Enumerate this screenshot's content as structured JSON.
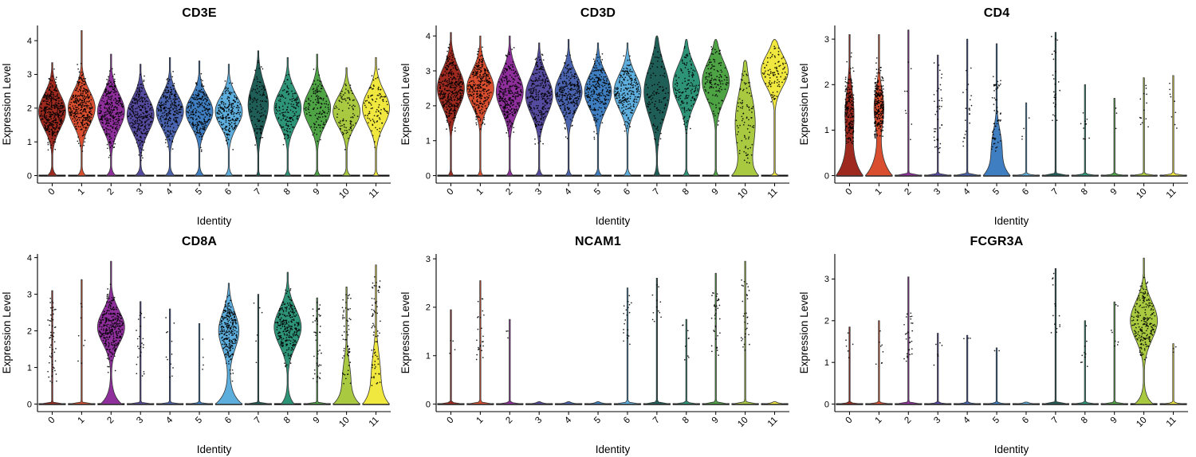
{
  "style": {
    "background": "#FFFFFF",
    "point_color": "#000000",
    "violin_stroke": "#333333",
    "axis_color": "#000000"
  },
  "cluster_colors": [
    "#9E2A1F",
    "#D94E2F",
    "#8E2F9C",
    "#544A9E",
    "#4A63AE",
    "#3F7EC0",
    "#5EAEDD",
    "#1F5E57",
    "#2E9478",
    "#4EA345",
    "#A9CA40",
    "#F0E73F"
  ],
  "chart_data": [
    {
      "type": "violin",
      "title": "CD3E",
      "xlabel": "Identity",
      "ylabel": "Expression Level",
      "categories": [
        "0",
        "1",
        "2",
        "3",
        "4",
        "5",
        "6",
        "7",
        "8",
        "9",
        "10",
        "11"
      ],
      "ylim": [
        0,
        4.45
      ],
      "yticks": [
        0,
        1,
        2,
        3,
        4
      ],
      "violins": [
        {
          "m": 1.9,
          "s": 0.5,
          "a": 1,
          "z": 0.35,
          "zd": 0.12,
          "top": 3.35,
          "n": 380,
          "plo": 0.6,
          "phi": 3.2
        },
        {
          "m": 2.0,
          "s": 0.5,
          "a": 1,
          "z": 0.3,
          "zd": 0.12,
          "top": 4.3,
          "n": 320,
          "plo": 0.6,
          "phi": 3.4
        },
        {
          "m": 1.9,
          "s": 0.52,
          "a": 1,
          "z": 0.35,
          "zd": 0.12,
          "top": 3.6,
          "n": 300,
          "plo": 0.5,
          "phi": 3.3
        },
        {
          "m": 1.8,
          "s": 0.5,
          "a": 1,
          "z": 0.4,
          "zd": 0.12,
          "top": 3.3,
          "n": 280,
          "plo": 0.4,
          "phi": 3.1
        },
        {
          "m": 1.9,
          "s": 0.48,
          "a": 1,
          "z": 0.35,
          "zd": 0.12,
          "top": 3.5,
          "n": 260,
          "plo": 0.6,
          "phi": 3.2
        },
        {
          "m": 1.9,
          "s": 0.45,
          "a": 1,
          "z": 0.35,
          "zd": 0.12,
          "top": 3.4,
          "n": 240,
          "plo": 0.6,
          "phi": 3.1
        },
        {
          "m": 1.9,
          "s": 0.45,
          "a": 1,
          "z": 0.3,
          "zd": 0.12,
          "top": 3.3,
          "n": 220,
          "plo": 0.6,
          "phi": 3.1
        },
        {
          "m": 2.1,
          "s": 0.6,
          "a": 1,
          "z": 0.2,
          "zd": 0.1,
          "top": 3.7,
          "n": 110,
          "plo": 0.8,
          "phi": 3.5,
          "w": 0.75
        },
        {
          "m": 2.0,
          "s": 0.5,
          "a": 1,
          "z": 0.25,
          "zd": 0.1,
          "top": 3.5,
          "n": 150,
          "plo": 0.7,
          "phi": 3.3
        },
        {
          "m": 2.0,
          "s": 0.5,
          "a": 1,
          "z": 0.25,
          "zd": 0.1,
          "top": 3.6,
          "n": 130,
          "plo": 0.7,
          "phi": 3.3
        },
        {
          "m": 1.9,
          "s": 0.45,
          "a": 1,
          "z": 0.3,
          "zd": 0.1,
          "top": 3.2,
          "n": 90,
          "plo": 0.7,
          "phi": 3.0
        },
        {
          "m": 2.0,
          "s": 0.5,
          "a": 1,
          "z": 0.2,
          "zd": 0.1,
          "top": 3.5,
          "n": 100,
          "plo": 0.8,
          "phi": 3.3
        }
      ]
    },
    {
      "type": "violin",
      "title": "CD3D",
      "xlabel": "Identity",
      "ylabel": "Expression Level",
      "categories": [
        "0",
        "1",
        "2",
        "3",
        "4",
        "5",
        "6",
        "7",
        "8",
        "9",
        "10",
        "11"
      ],
      "ylim": [
        0,
        4.3
      ],
      "yticks": [
        0,
        1,
        2,
        3,
        4
      ],
      "violins": [
        {
          "m": 2.5,
          "s": 0.55,
          "a": 1,
          "z": 0.2,
          "zd": 0.1,
          "top": 4.1,
          "n": 380,
          "plo": 1.2,
          "phi": 3.8
        },
        {
          "m": 2.5,
          "s": 0.5,
          "a": 1,
          "z": 0.2,
          "zd": 0.1,
          "top": 4.0,
          "n": 320,
          "plo": 1.2,
          "phi": 3.7
        },
        {
          "m": 2.4,
          "s": 0.55,
          "a": 1,
          "z": 0.25,
          "zd": 0.1,
          "top": 4.0,
          "n": 300,
          "plo": 1.0,
          "phi": 3.7
        },
        {
          "m": 2.3,
          "s": 0.55,
          "a": 1,
          "z": 0.3,
          "zd": 0.1,
          "top": 3.8,
          "n": 280,
          "plo": 0.9,
          "phi": 3.5
        },
        {
          "m": 2.4,
          "s": 0.5,
          "a": 1,
          "z": 0.25,
          "zd": 0.1,
          "top": 3.9,
          "n": 260,
          "plo": 1.0,
          "phi": 3.6
        },
        {
          "m": 2.4,
          "s": 0.5,
          "a": 1,
          "z": 0.3,
          "zd": 0.1,
          "top": 3.8,
          "n": 240,
          "plo": 1.0,
          "phi": 3.5
        },
        {
          "m": 2.4,
          "s": 0.5,
          "a": 1,
          "z": 0.3,
          "zd": 0.1,
          "top": 3.8,
          "n": 220,
          "plo": 1.0,
          "phi": 3.5
        },
        {
          "m": 2.4,
          "s": 0.72,
          "a": 1,
          "z": 0.25,
          "zd": 0.15,
          "top": 4.0,
          "n": 110,
          "plo": 0.8,
          "phi": 3.8,
          "w": 0.95
        },
        {
          "m": 2.6,
          "s": 0.55,
          "a": 1,
          "z": 0.25,
          "zd": 0.1,
          "top": 3.9,
          "n": 150,
          "plo": 1.0,
          "phi": 3.7
        },
        {
          "m": 2.7,
          "s": 0.55,
          "a": 1,
          "z": 0.2,
          "zd": 0.1,
          "top": 3.9,
          "n": 130,
          "plo": 1.2,
          "phi": 3.7
        },
        {
          "m": 1.5,
          "s": 0.9,
          "a": 0.9,
          "z": 1,
          "zd": 0.3,
          "top": 3.3,
          "n": 90,
          "plo": 0.3,
          "phi": 3.0
        },
        {
          "m": 3.0,
          "s": 0.45,
          "a": 1,
          "z": 0.3,
          "zd": 0.05,
          "top": 3.9,
          "n": 100,
          "plo": 2.0,
          "phi": 3.8
        }
      ]
    },
    {
      "type": "violin",
      "title": "CD4",
      "xlabel": "Identity",
      "ylabel": "Expression Level",
      "categories": [
        "0",
        "1",
        "2",
        "3",
        "4",
        "5",
        "6",
        "7",
        "8",
        "9",
        "10",
        "11"
      ],
      "ylim": [
        0,
        3.3
      ],
      "yticks": [
        0,
        1,
        2,
        3
      ],
      "violins": [
        {
          "m": 1.4,
          "s": 0.5,
          "a": 0.3,
          "z": 1,
          "zd": 0.4,
          "top": 3.1,
          "n": 190,
          "plo": 0.7,
          "phi": 2.7,
          "pd": "g"
        },
        {
          "m": 1.5,
          "s": 0.4,
          "a": 0.35,
          "z": 1,
          "zd": 0.35,
          "top": 3.1,
          "n": 250,
          "plo": 0.8,
          "phi": 2.6,
          "pd": "g"
        },
        {
          "top": 3.2,
          "n": 8,
          "plo": 0.6,
          "phi": 2.6
        },
        {
          "top": 2.65,
          "n": 40,
          "plo": 0.5,
          "phi": 2.5
        },
        {
          "top": 3.0,
          "n": 22,
          "plo": 0.6,
          "phi": 2.4
        },
        {
          "m": 0.7,
          "s": 0.35,
          "a": 0.3,
          "z": 1,
          "zd": 0.3,
          "top": 2.9,
          "n": 60,
          "plo": 0.5,
          "phi": 2.2,
          "pd": "u"
        },
        {
          "top": 1.6,
          "n": 4,
          "plo": 0.8,
          "phi": 1.5
        },
        {
          "top": 3.15,
          "n": 26,
          "plo": 1.2,
          "phi": 3.1
        },
        {
          "top": 2.0,
          "n": 10,
          "plo": 0.8,
          "phi": 1.9
        },
        {
          "top": 1.7,
          "n": 3,
          "plo": 1.0,
          "phi": 1.7
        },
        {
          "top": 2.15,
          "n": 14,
          "plo": 1.0,
          "phi": 2.1
        },
        {
          "top": 2.2,
          "n": 9,
          "plo": 1.0,
          "phi": 2.1
        }
      ]
    },
    {
      "type": "violin",
      "title": "CD8A",
      "xlabel": "Identity",
      "ylabel": "Expression Level",
      "categories": [
        "0",
        "1",
        "2",
        "3",
        "4",
        "5",
        "6",
        "7",
        "8",
        "9",
        "10",
        "11"
      ],
      "ylim": [
        0,
        4.1
      ],
      "yticks": [
        0,
        1,
        2,
        3,
        4
      ],
      "violins": [
        {
          "top": 3.1,
          "n": 55,
          "plo": 0.5,
          "phi": 2.9
        },
        {
          "top": 3.4,
          "n": 8,
          "plo": 0.8,
          "phi": 3.0
        },
        {
          "m": 2.1,
          "s": 0.45,
          "a": 1,
          "z": 0.8,
          "zd": 0.25,
          "top": 3.9,
          "n": 300,
          "plo": 0.8,
          "phi": 3.4,
          "pd": "g"
        },
        {
          "top": 2.8,
          "n": 24,
          "plo": 0.5,
          "phi": 2.6
        },
        {
          "top": 2.6,
          "n": 12,
          "plo": 0.6,
          "phi": 2.4
        },
        {
          "top": 2.2,
          "n": 4,
          "plo": 0.9,
          "phi": 2.1
        },
        {
          "m": 2.0,
          "s": 0.5,
          "a": 0.75,
          "z": 1,
          "zd": 0.3,
          "top": 3.3,
          "n": 260,
          "plo": 0.4,
          "phi": 3.0,
          "pd": "g"
        },
        {
          "top": 3.0,
          "n": 6,
          "plo": 1.0,
          "phi": 2.8
        },
        {
          "m": 2.1,
          "s": 0.5,
          "a": 1,
          "z": 0.5,
          "zd": 0.2,
          "top": 3.6,
          "n": 260,
          "plo": 0.8,
          "phi": 3.3,
          "pd": "g"
        },
        {
          "top": 2.9,
          "n": 48,
          "plo": 0.5,
          "phi": 2.8
        },
        {
          "m": 0.8,
          "s": 0.45,
          "a": 0.25,
          "z": 1,
          "zd": 0.3,
          "top": 3.2,
          "n": 60,
          "plo": 0.5,
          "phi": 3.0,
          "pd": "u"
        },
        {
          "m": 0.9,
          "s": 0.6,
          "a": 0.3,
          "z": 1,
          "zd": 0.35,
          "top": 3.8,
          "n": 70,
          "plo": 0.5,
          "phi": 3.5,
          "pd": "u"
        }
      ]
    },
    {
      "type": "violin",
      "title": "NCAM1",
      "xlabel": "Identity",
      "ylabel": "Expression Level",
      "categories": [
        "0",
        "1",
        "2",
        "3",
        "4",
        "5",
        "6",
        "7",
        "8",
        "9",
        "10",
        "11"
      ],
      "ylim": [
        0,
        3.1
      ],
      "yticks": [
        0,
        1,
        2,
        3
      ],
      "violins": [
        {
          "top": 1.95,
          "n": 4,
          "plo": 0.9,
          "phi": 1.9
        },
        {
          "top": 2.55,
          "n": 24,
          "plo": 0.9,
          "phi": 2.2
        },
        {
          "top": 1.75,
          "n": 3,
          "plo": 1.0,
          "phi": 1.7
        },
        {
          "top": 0.05,
          "n": 0,
          "plo": 0,
          "phi": 0
        },
        {
          "top": 0.05,
          "n": 0,
          "plo": 0,
          "phi": 0
        },
        {
          "top": 0.05,
          "n": 0,
          "plo": 0,
          "phi": 0
        },
        {
          "top": 2.4,
          "n": 20,
          "plo": 1.2,
          "phi": 2.3
        },
        {
          "top": 2.6,
          "n": 12,
          "plo": 1.6,
          "phi": 2.6
        },
        {
          "top": 1.75,
          "n": 9,
          "plo": 0.9,
          "phi": 1.7
        },
        {
          "top": 2.7,
          "n": 34,
          "plo": 0.9,
          "phi": 2.4
        },
        {
          "top": 2.95,
          "n": 30,
          "plo": 1.0,
          "phi": 2.6
        },
        {
          "top": 0.05,
          "n": 0,
          "plo": 0,
          "phi": 0
        }
      ]
    },
    {
      "type": "violin",
      "title": "FCGR3A",
      "xlabel": "Identity",
      "ylabel": "Expression Level",
      "categories": [
        "0",
        "1",
        "2",
        "3",
        "4",
        "5",
        "6",
        "7",
        "8",
        "9",
        "10",
        "11"
      ],
      "ylim": [
        0,
        3.6
      ],
      "yticks": [
        0,
        1,
        2,
        3
      ],
      "violins": [
        {
          "top": 1.85,
          "n": 6,
          "plo": 0.9,
          "phi": 1.8
        },
        {
          "top": 2.0,
          "n": 8,
          "plo": 0.9,
          "phi": 1.9
        },
        {
          "top": 3.05,
          "n": 30,
          "plo": 1.0,
          "phi": 2.3
        },
        {
          "top": 1.7,
          "n": 6,
          "plo": 0.9,
          "phi": 1.6
        },
        {
          "top": 1.65,
          "n": 3,
          "plo": 1.0,
          "phi": 1.6
        },
        {
          "top": 1.35,
          "n": 2,
          "plo": 1.2,
          "phi": 1.3
        },
        {
          "top": 0.05,
          "n": 0,
          "plo": 0,
          "phi": 0
        },
        {
          "top": 3.25,
          "n": 14,
          "plo": 1.6,
          "phi": 3.2
        },
        {
          "top": 2.0,
          "n": 10,
          "plo": 0.9,
          "phi": 1.9
        },
        {
          "top": 2.45,
          "n": 8,
          "plo": 1.3,
          "phi": 2.4
        },
        {
          "m": 2.0,
          "s": 0.45,
          "a": 1,
          "z": 0.7,
          "zd": 0.18,
          "top": 3.5,
          "n": 220,
          "plo": 1.0,
          "phi": 3.2,
          "pd": "g"
        },
        {
          "top": 1.45,
          "n": 3,
          "plo": 1.0,
          "phi": 1.4
        }
      ]
    }
  ]
}
